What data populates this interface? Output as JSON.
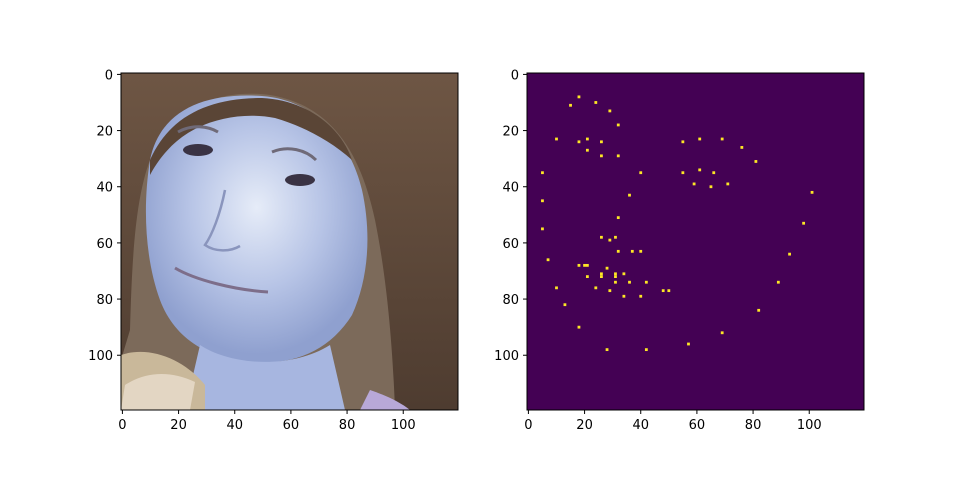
{
  "colors": {
    "figure_background": "#ffffff",
    "mask_background": "#440154",
    "mask_point": "#fde725",
    "axis": "#000000"
  },
  "chart_data": [
    {
      "type": "image",
      "content": "color photograph of a woman's face with shoulder-length brown hair, rendered with a bluish tint",
      "x_ticks": [
        0,
        20,
        40,
        60,
        80,
        100
      ],
      "y_ticks": [
        0,
        20,
        40,
        60,
        80,
        100
      ],
      "xlim": [
        -0.5,
        119.5
      ],
      "ylim": [
        119.5,
        -0.5
      ]
    },
    {
      "type": "heatmap",
      "colormap": "viridis",
      "background_value": 0,
      "point_value": 1,
      "x_ticks": [
        0,
        20,
        40,
        60,
        80,
        100
      ],
      "y_ticks": [
        0,
        20,
        40,
        60,
        80,
        100
      ],
      "xlim": [
        -0.5,
        119.5
      ],
      "ylim": [
        119.5,
        -0.5
      ],
      "points": [
        [
          18,
          8
        ],
        [
          15,
          11
        ],
        [
          24,
          10
        ],
        [
          29,
          13
        ],
        [
          32,
          18
        ],
        [
          10,
          23
        ],
        [
          18,
          24
        ],
        [
          21,
          23
        ],
        [
          26,
          24
        ],
        [
          21,
          27
        ],
        [
          26,
          29
        ],
        [
          32,
          29
        ],
        [
          40,
          35
        ],
        [
          36,
          43
        ],
        [
          5,
          35
        ],
        [
          5,
          45
        ],
        [
          5,
          55
        ],
        [
          32,
          51
        ],
        [
          26,
          58
        ],
        [
          29,
          59
        ],
        [
          31,
          58
        ],
        [
          32,
          63
        ],
        [
          37,
          63
        ],
        [
          40,
          63
        ],
        [
          7,
          66
        ],
        [
          18,
          68
        ],
        [
          20,
          68
        ],
        [
          21,
          68
        ],
        [
          28,
          69
        ],
        [
          21,
          72
        ],
        [
          26,
          71
        ],
        [
          26,
          72
        ],
        [
          31,
          71
        ],
        [
          31,
          72
        ],
        [
          34,
          71
        ],
        [
          31,
          74
        ],
        [
          36,
          74
        ],
        [
          42,
          74
        ],
        [
          10,
          76
        ],
        [
          24,
          76
        ],
        [
          29,
          77
        ],
        [
          34,
          79
        ],
        [
          40,
          79
        ],
        [
          48,
          77
        ],
        [
          50,
          77
        ],
        [
          13,
          82
        ],
        [
          18,
          90
        ],
        [
          28,
          98
        ],
        [
          42,
          98
        ],
        [
          57,
          96
        ],
        [
          55,
          24
        ],
        [
          61,
          23
        ],
        [
          69,
          23
        ],
        [
          76,
          26
        ],
        [
          81,
          31
        ],
        [
          55,
          35
        ],
        [
          61,
          34
        ],
        [
          66,
          35
        ],
        [
          59,
          39
        ],
        [
          65,
          40
        ],
        [
          71,
          39
        ],
        [
          101,
          42
        ],
        [
          98,
          53
        ],
        [
          93,
          64
        ],
        [
          89,
          74
        ],
        [
          82,
          84
        ],
        [
          69,
          92
        ]
      ]
    }
  ]
}
